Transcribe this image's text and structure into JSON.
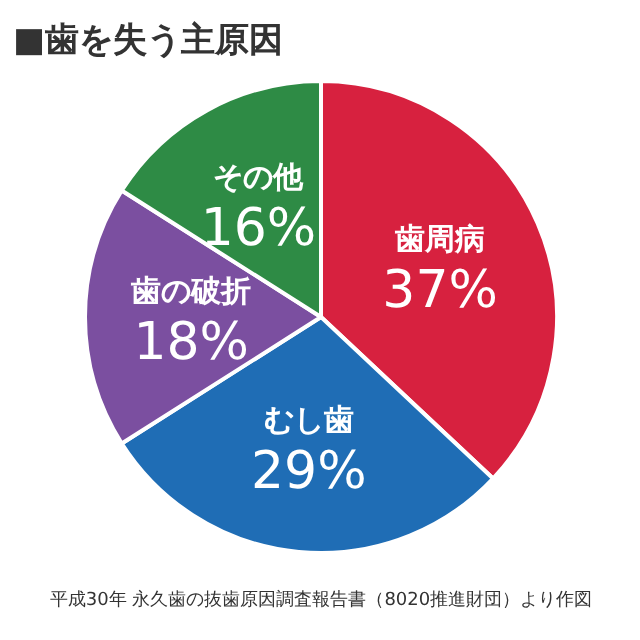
{
  "chart_data": {
    "type": "pie",
    "title": "■歯を失う主原因",
    "categories": [
      "歯周病",
      "むし歯",
      "歯の破折",
      "その他"
    ],
    "values": [
      37,
      29,
      18,
      16
    ],
    "colors": [
      "#d7213f",
      "#1f6db5",
      "#7b4fa0",
      "#2e8b45"
    ],
    "value_labels": [
      "37%",
      "29%",
      "18%",
      "16%"
    ],
    "annotations": [
      "平成30年 永久歯の抜歯原因調査報告書（8020推進財団）より作図"
    ]
  }
}
